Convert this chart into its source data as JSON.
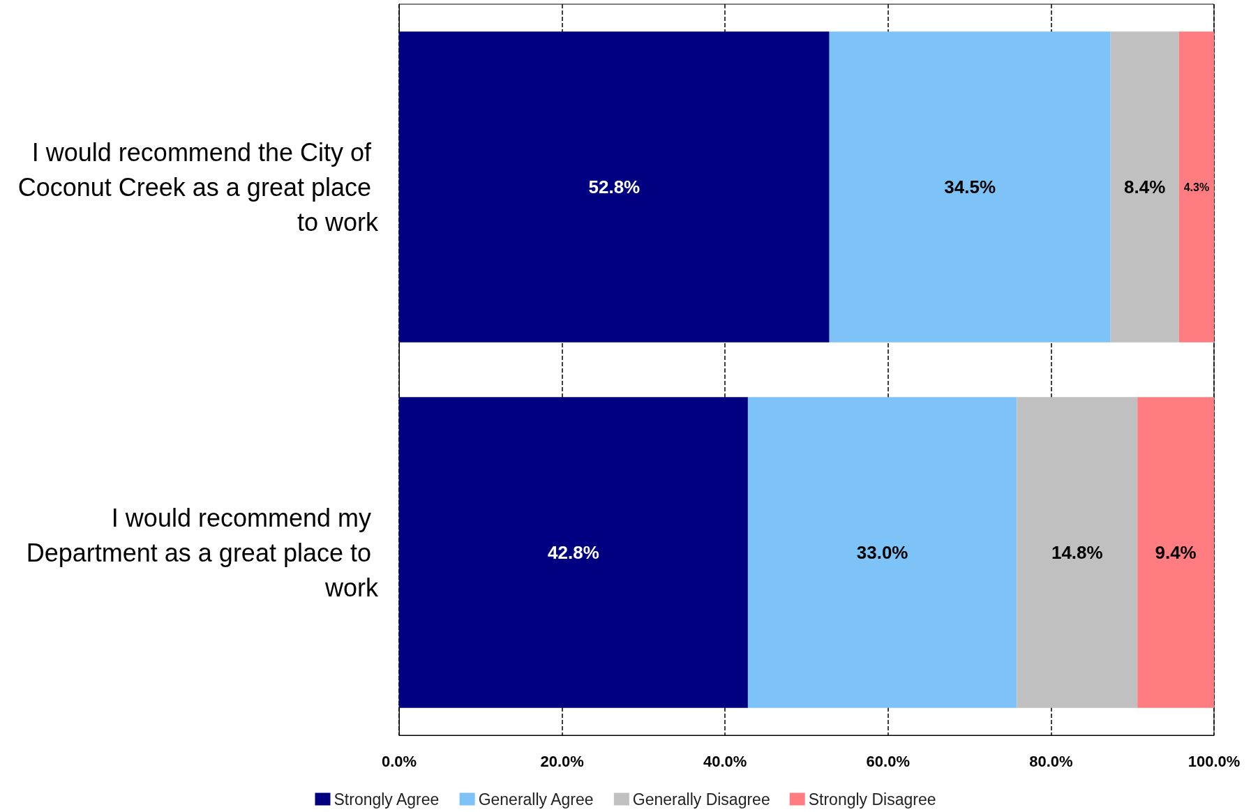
{
  "chart_data": {
    "type": "bar",
    "orientation": "horizontal",
    "stacked": true,
    "categories": [
      "I would recommend the City of Coconut Creek as a great place to work",
      "I would recommend my Department as a great place to work"
    ],
    "series": [
      {
        "name": "Strongly Agree",
        "color": "#000080",
        "values": [
          52.8,
          42.8
        ],
        "value_labels": [
          "52.8%",
          "42.8%"
        ]
      },
      {
        "name": "Generally Agree",
        "color": "#7dc3f7",
        "values": [
          34.5,
          33.0
        ],
        "value_labels": [
          "34.5%",
          "33.0%"
        ]
      },
      {
        "name": "Generally Disagree",
        "color": "#c0c0c0",
        "values": [
          8.4,
          14.8
        ],
        "value_labels": [
          "8.4%",
          "14.8%"
        ]
      },
      {
        "name": "Strongly Disagree",
        "color": "#ff7c80",
        "values": [
          4.3,
          9.4
        ],
        "value_labels": [
          "4.3%",
          "9.4%"
        ]
      }
    ],
    "xlim": [
      0,
      100
    ],
    "xticks": [
      {
        "value": 0,
        "label": "0.0%"
      },
      {
        "value": 20,
        "label": "20.0%"
      },
      {
        "value": 40,
        "label": "40.0%"
      },
      {
        "value": 60,
        "label": "60.0%"
      },
      {
        "value": 80,
        "label": "80.0%"
      },
      {
        "value": 100,
        "label": "100.0%"
      }
    ],
    "grid": "x",
    "legend": "bottom"
  }
}
